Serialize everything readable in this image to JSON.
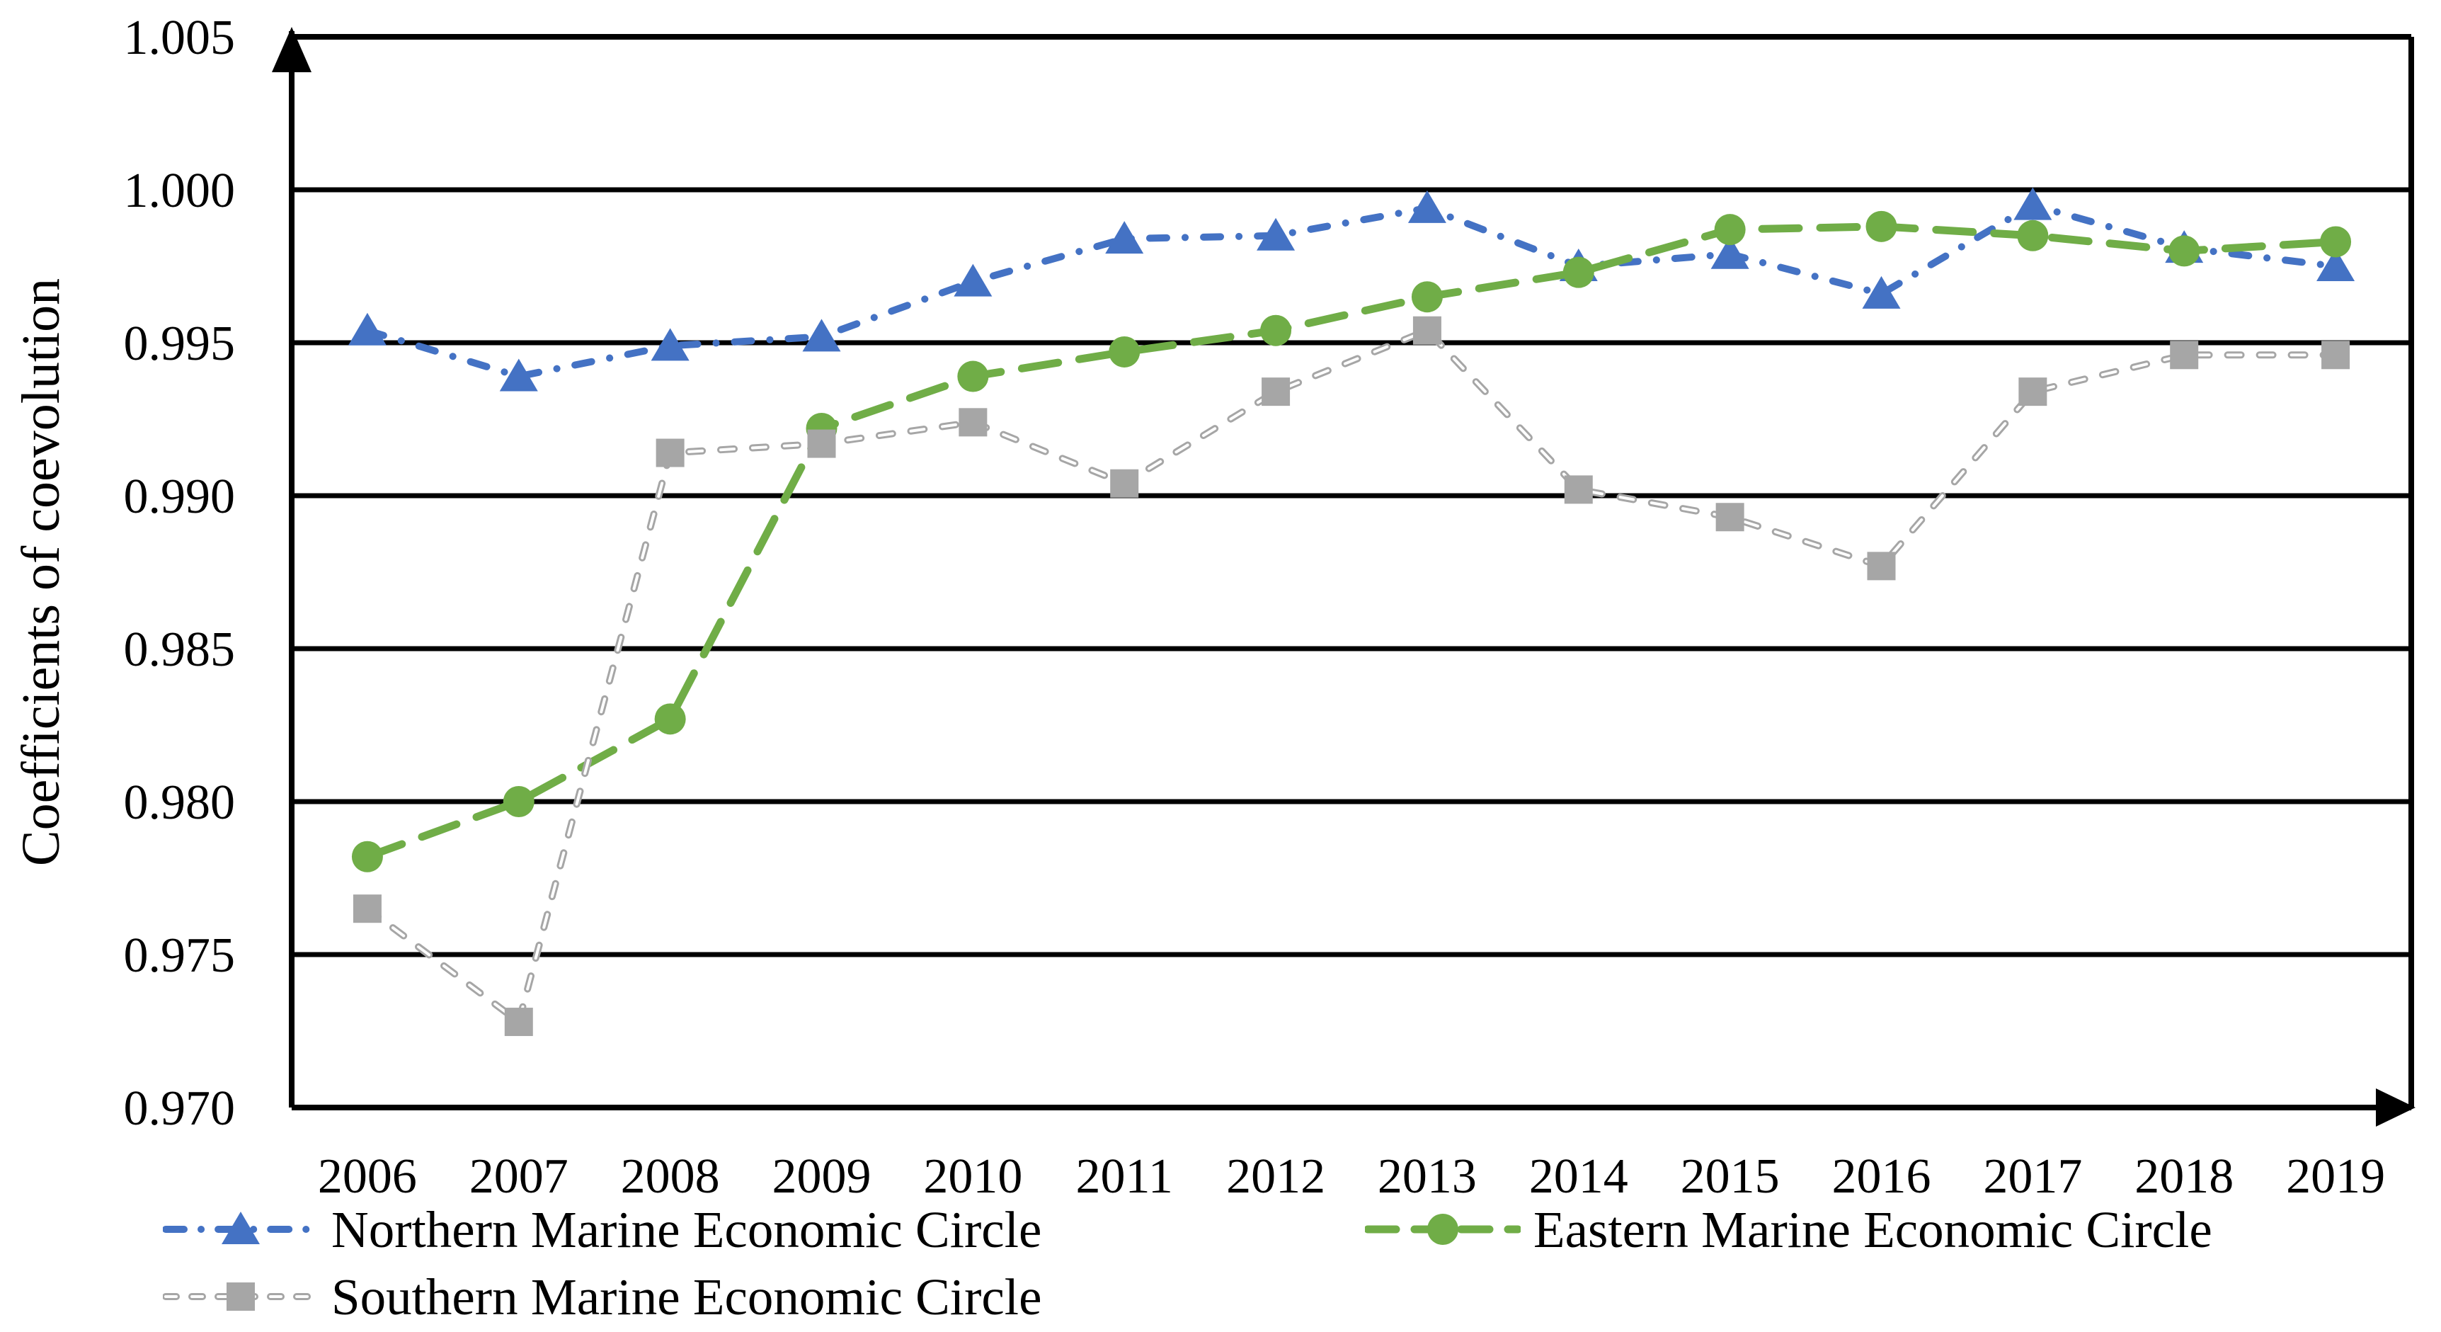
{
  "chart_data": {
    "type": "line",
    "title": "",
    "ylabel": "Coefficients of coevolution",
    "xlabel": "",
    "ylim": [
      0.97,
      1.005
    ],
    "y_tick_step": 0.005,
    "y_ticks": [
      "1.005",
      "1.000",
      "0.995",
      "0.990",
      "0.985",
      "0.980",
      "0.975",
      "0.970"
    ],
    "categories": [
      "2006",
      "2007",
      "2008",
      "2009",
      "2010",
      "2011",
      "2012",
      "2013",
      "2014",
      "2015",
      "2016",
      "2017",
      "2018",
      "2019"
    ],
    "grid": "horizontal-black",
    "axis_arrows": true,
    "legend_position": "bottom-left-two-rows",
    "series": [
      {
        "name": "Northern Marine Economic Circle",
        "marker": "triangle",
        "line_style": "dash-dot",
        "color": "#4472C4",
        "values": [
          0.9954,
          0.9939,
          0.9949,
          0.9952,
          0.997,
          0.9984,
          0.9985,
          0.9994,
          0.9975,
          0.9979,
          0.9966,
          0.9995,
          0.9981,
          0.9975
        ]
      },
      {
        "name": "Eastern Marine Economic Circle",
        "marker": "circle",
        "line_style": "dashed",
        "color": "#70AD47",
        "values": [
          0.9782,
          0.98,
          0.9827,
          0.9922,
          0.9939,
          0.9947,
          0.9954,
          0.9965,
          0.9973,
          0.9987,
          0.9988,
          0.9985,
          0.998,
          0.9983
        ]
      },
      {
        "name": "Southern Marine Economic Circle",
        "marker": "square",
        "line_style": "dashed-hollow",
        "color": "#A6A6A6",
        "values": [
          0.9765,
          0.9728,
          0.9914,
          0.9917,
          0.9924,
          0.9904,
          0.9934,
          0.9954,
          0.9902,
          0.9893,
          0.9877,
          0.9934,
          0.9946,
          0.9946
        ]
      }
    ],
    "colors": {
      "axis": "#000000",
      "gridline": "#000000",
      "background": "#ffffff",
      "hollow_dash_core": "#ffffff"
    }
  }
}
